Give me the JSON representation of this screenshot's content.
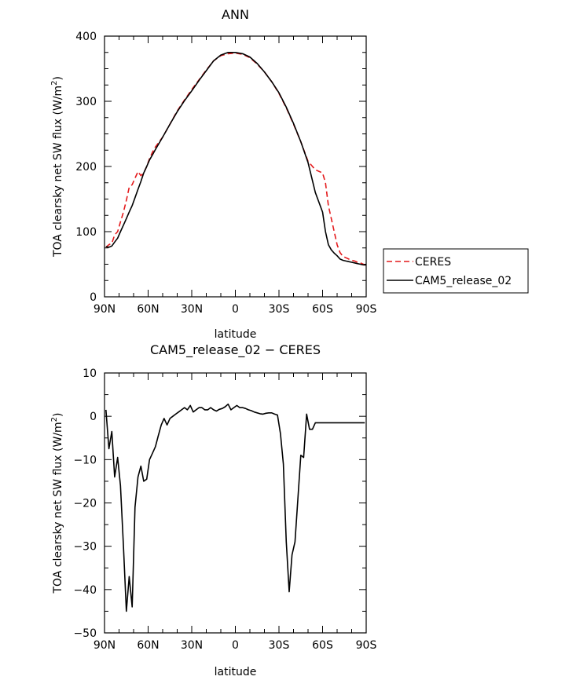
{
  "chart_data": [
    {
      "type": "line",
      "title": "ANN",
      "xlabel": "latitude",
      "ylabel_html": "TOA clearsky net SW flux (W/m²)",
      "ylabel_main": "TOA clearsky net SW flux (W/m",
      "ylabel_sup": "2",
      "ylabel_end": ")",
      "xlim": [
        -90,
        90
      ],
      "ylim": [
        0,
        400
      ],
      "xticks": [
        -90,
        -60,
        -30,
        0,
        30,
        60,
        90
      ],
      "xtick_labels": [
        "90N",
        "60N",
        "30N",
        "0",
        "30S",
        "60S",
        "90S"
      ],
      "yticks": [
        0,
        100,
        200,
        300,
        400
      ],
      "ytick_labels": [
        "0",
        "100",
        "200",
        "300",
        "400"
      ],
      "legend": {
        "placement": "right",
        "entries": [
          "CERES",
          "CAM5_release_02"
        ]
      },
      "series": [
        {
          "name": "CERES",
          "color": "#e41a1c",
          "dash": true,
          "x": [
            -89,
            -87,
            -85,
            -83,
            -81,
            -79,
            -77,
            -75,
            -73,
            -71,
            -69,
            -67,
            -65,
            -63,
            -61,
            -59,
            -57,
            -55,
            -50,
            -45,
            -40,
            -35,
            -30,
            -25,
            -20,
            -15,
            -10,
            -5,
            0,
            5,
            10,
            15,
            20,
            25,
            30,
            35,
            40,
            45,
            50,
            55,
            60,
            62,
            64,
            66,
            68,
            70,
            72,
            74,
            76,
            78,
            80,
            82,
            84,
            86,
            88,
            90
          ],
          "values": [
            76,
            80,
            82,
            95,
            100,
            115,
            130,
            148,
            168,
            172,
            182,
            192,
            186,
            190,
            200,
            212,
            222,
            230,
            245,
            265,
            285,
            302,
            318,
            333,
            348,
            362,
            370,
            373,
            374,
            372,
            367,
            357,
            345,
            330,
            312,
            290,
            265,
            238,
            208,
            195,
            190,
            175,
            140,
            120,
            100,
            80,
            68,
            62,
            60,
            58,
            56,
            55,
            53,
            52,
            50,
            48
          ]
        },
        {
          "name": "CAM5_release_02",
          "color": "#000000",
          "dash": false,
          "x": [
            -89,
            -87,
            -85,
            -83,
            -81,
            -79,
            -77,
            -75,
            -73,
            -71,
            -69,
            -67,
            -65,
            -63,
            -61,
            -59,
            -57,
            -55,
            -50,
            -45,
            -40,
            -35,
            -30,
            -25,
            -20,
            -15,
            -10,
            -5,
            0,
            5,
            10,
            15,
            20,
            25,
            30,
            35,
            40,
            45,
            50,
            55,
            60,
            62,
            64,
            66,
            68,
            70,
            72,
            74,
            76,
            78,
            80,
            82,
            84,
            86,
            88,
            90
          ],
          "values": [
            77,
            76,
            78,
            84,
            90,
            100,
            110,
            120,
            130,
            140,
            152,
            165,
            177,
            190,
            200,
            210,
            218,
            226,
            245,
            265,
            284,
            301,
            316,
            332,
            347,
            362,
            371,
            375,
            375,
            373,
            368,
            358,
            345,
            330,
            313,
            291,
            266,
            238,
            206,
            160,
            130,
            100,
            80,
            72,
            67,
            63,
            58,
            56,
            55,
            54,
            53,
            52,
            51,
            50,
            49,
            49
          ]
        }
      ]
    },
    {
      "type": "line",
      "title": "CAM5_release_02 − CERES",
      "xlabel": "latitude",
      "ylabel_main": "TOA clearsky net SW flux (W/m",
      "ylabel_sup": "2",
      "ylabel_end": ")",
      "xlim": [
        -90,
        90
      ],
      "ylim": [
        -50,
        10
      ],
      "xticks": [
        -90,
        -60,
        -30,
        0,
        30,
        60,
        90
      ],
      "xtick_labels": [
        "90N",
        "60N",
        "30N",
        "0",
        "30S",
        "60S",
        "90S"
      ],
      "yticks": [
        -50,
        -40,
        -30,
        -20,
        -10,
        0,
        10
      ],
      "ytick_labels": [
        "−50",
        "−40",
        "−30",
        "−20",
        "−10",
        "0",
        "10"
      ],
      "series": [
        {
          "name": "CAM5_release_02 − CERES",
          "color": "#000000",
          "dash": false,
          "x": [
            -89,
            -87,
            -85,
            -83,
            -81,
            -79,
            -77,
            -75,
            -73,
            -71,
            -69,
            -67,
            -65,
            -63,
            -61,
            -59,
            -57,
            -55,
            -53,
            -51,
            -49,
            -47,
            -45,
            -43,
            -41,
            -39,
            -37,
            -35,
            -33,
            -31,
            -29,
            -27,
            -25,
            -23,
            -21,
            -19,
            -17,
            -15,
            -13,
            -11,
            -9,
            -7,
            -5,
            -3,
            -1,
            1,
            3,
            5,
            7,
            9,
            11,
            13,
            15,
            17,
            19,
            21,
            23,
            25,
            27,
            29,
            31,
            33,
            35,
            37,
            39,
            41,
            43,
            45,
            47,
            49,
            51,
            53,
            55,
            57,
            59,
            61,
            63,
            65,
            67,
            69,
            71,
            73,
            75,
            77,
            79,
            81,
            83,
            85,
            87,
            89
          ],
          "values": [
            1.5,
            -7.5,
            -3.5,
            -14,
            -9.5,
            -16,
            -30,
            -45,
            -37,
            -44,
            -21,
            -14,
            -11.5,
            -15,
            -14.5,
            -10,
            -8.5,
            -7,
            -4.5,
            -2,
            -0.5,
            -2,
            -0.5,
            0,
            0.5,
            1,
            1.5,
            2,
            1.5,
            2.5,
            1,
            1.5,
            2,
            2,
            1.5,
            1.5,
            2,
            1.5,
            1.2,
            1.6,
            1.8,
            2.2,
            2.8,
            1.5,
            2,
            2.5,
            2,
            2,
            1.8,
            1.5,
            1.3,
            1,
            0.8,
            0.6,
            0.5,
            0.7,
            0.8,
            0.8,
            0.5,
            0.3,
            -4,
            -11,
            -29,
            -40.5,
            -32,
            -29,
            -19,
            -9,
            -9.5,
            0.5,
            -3,
            -3,
            -1.5,
            -1.5,
            -1.5,
            -1.5,
            -1.5,
            -1.5,
            -1.5,
            -1.5,
            -1.5,
            -1.5,
            -1.5,
            -1.5,
            -1.5,
            -1.5,
            -1.5,
            -1.5,
            -1.5,
            -1.5
          ]
        }
      ]
    }
  ]
}
